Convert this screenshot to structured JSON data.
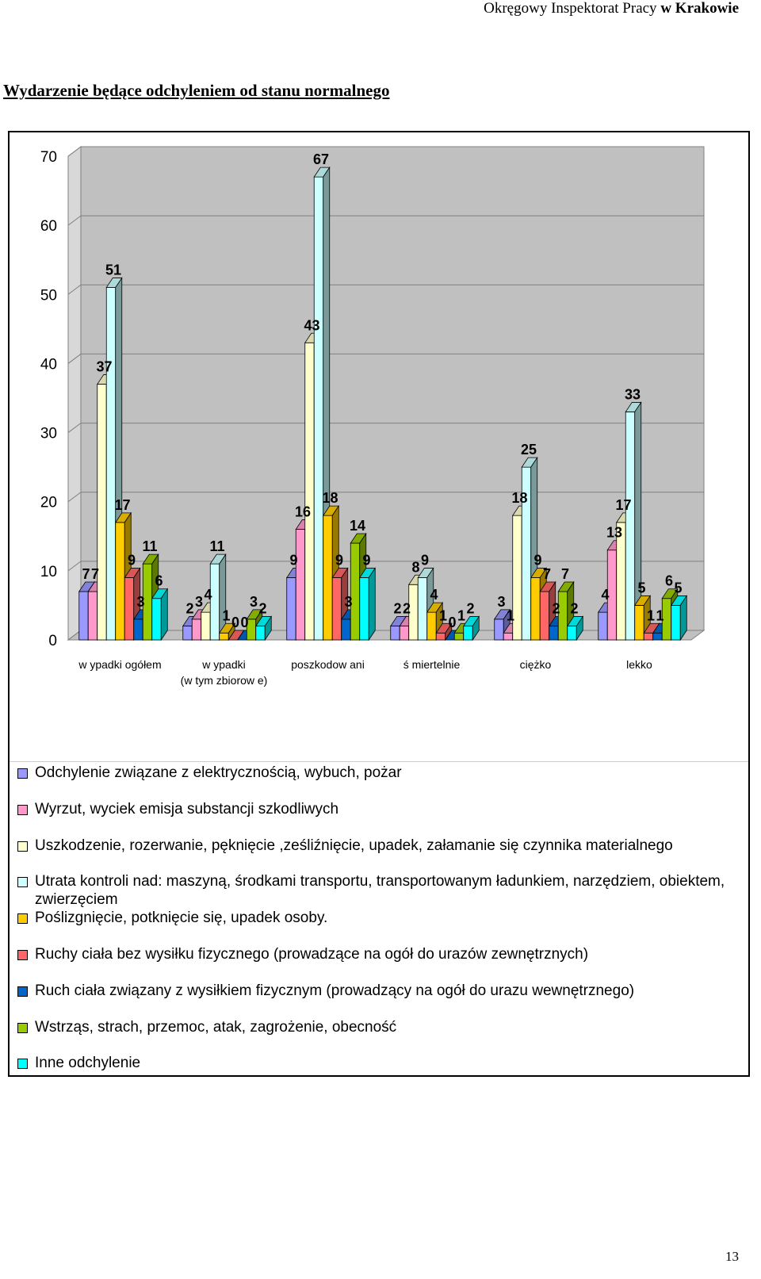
{
  "header": {
    "prefix": "Okręgowy Inspektorat Pracy ",
    "bold": "w Krakowie"
  },
  "section_title": "Wydarzenie będące odchyleniem od stanu normalnego",
  "page_number": "13",
  "chart_data": {
    "type": "bar",
    "title": "",
    "xlabel": "",
    "ylabel": "",
    "ylim": [
      0,
      70
    ],
    "yticks": [
      0,
      10,
      20,
      30,
      40,
      50,
      60,
      70
    ],
    "grid": true,
    "legend_position": "bottom",
    "categories": [
      [
        "w ypadki ogółem"
      ],
      [
        "w ypadki",
        "(w  tym zbiorow e)"
      ],
      [
        "poszkodow ani"
      ],
      [
        "ś miertelnie"
      ],
      [
        "ciężko"
      ],
      [
        "lekko"
      ]
    ],
    "series": [
      {
        "name": "Odchylenie związane z elektrycznością, wybuch, pożar",
        "color": "#9999ff",
        "values": [
          7,
          2,
          9,
          2,
          3,
          4
        ]
      },
      {
        "name": "Wyrzut, wyciek emisja substancji szkodliwych",
        "color": "#ff99cc",
        "values": [
          7,
          3,
          16,
          2,
          1,
          13
        ]
      },
      {
        "name": "Uszkodzenie, rozerwanie, pęknięcie ,ześliźnięcie, upadek, załamanie się czynnika materialnego",
        "color": "#ffffcc",
        "values": [
          37,
          4,
          43,
          8,
          18,
          17
        ]
      },
      {
        "name": "Utrata kontroli nad: maszyną, środkami transportu, transportowanym ładunkiem, narzędziem, obiektem, zwierzęciem",
        "color": "#ccffff",
        "values": [
          51,
          11,
          67,
          9,
          25,
          33
        ]
      },
      {
        "name": "Poślizgnięcie, potknięcie się, upadek osoby.",
        "color": "#ffcc00",
        "values": [
          17,
          1,
          18,
          4,
          9,
          5
        ]
      },
      {
        "name": "Ruchy ciała bez wysiłku fizycznego (prowadzące na ogół do urazów zewnętrznych)",
        "color": "#ff6666",
        "values": [
          9,
          0,
          9,
          1,
          7,
          1
        ]
      },
      {
        "name": "Ruch ciała związany z wysiłkiem fizycznym (prowadzący na ogół do urazu wewnętrznego)",
        "color": "#0066cc",
        "values": [
          3,
          0,
          3,
          0,
          2,
          1
        ]
      },
      {
        "name": "Wstrząs, strach, przemoc, atak, zagrożenie, obecność",
        "color": "#99cc00",
        "values": [
          11,
          3,
          14,
          1,
          7,
          6
        ]
      },
      {
        "name": "Inne odchylenie",
        "color": "#00ffff",
        "values": [
          6,
          2,
          9,
          2,
          2,
          5
        ]
      }
    ]
  }
}
